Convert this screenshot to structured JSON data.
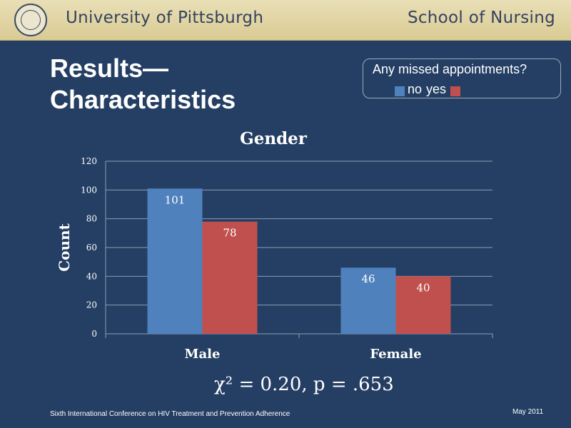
{
  "header": {
    "university": "University of Pittsburgh",
    "school": "School of Nursing"
  },
  "slide": {
    "title_line1": "Results—",
    "title_line2": "Characteristics"
  },
  "legend": {
    "title": "Any missed appointments?",
    "no_label": "no",
    "yes_label": "yes"
  },
  "colors": {
    "no": "#4f81bd",
    "yes": "#c0504d",
    "background": "#243f63"
  },
  "chart_data": {
    "type": "bar",
    "title": "Gender",
    "ylabel": "Count",
    "xlabel": "",
    "categories": [
      "Male",
      "Female"
    ],
    "series": [
      {
        "name": "no",
        "values": [
          101,
          46
        ]
      },
      {
        "name": "yes",
        "values": [
          78,
          40
        ]
      }
    ],
    "ylim": [
      0,
      120
    ],
    "yticks": [
      0,
      20,
      40,
      60,
      80,
      100,
      120
    ],
    "grid": true,
    "data_labels": [
      [
        "101",
        "46"
      ],
      [
        "78",
        "40"
      ]
    ]
  },
  "statistic": "χ² = 0.20, p = .653",
  "footer": {
    "conference": "Sixth International Conference on HIV Treatment and Prevention Adherence",
    "date": "May 2011"
  }
}
